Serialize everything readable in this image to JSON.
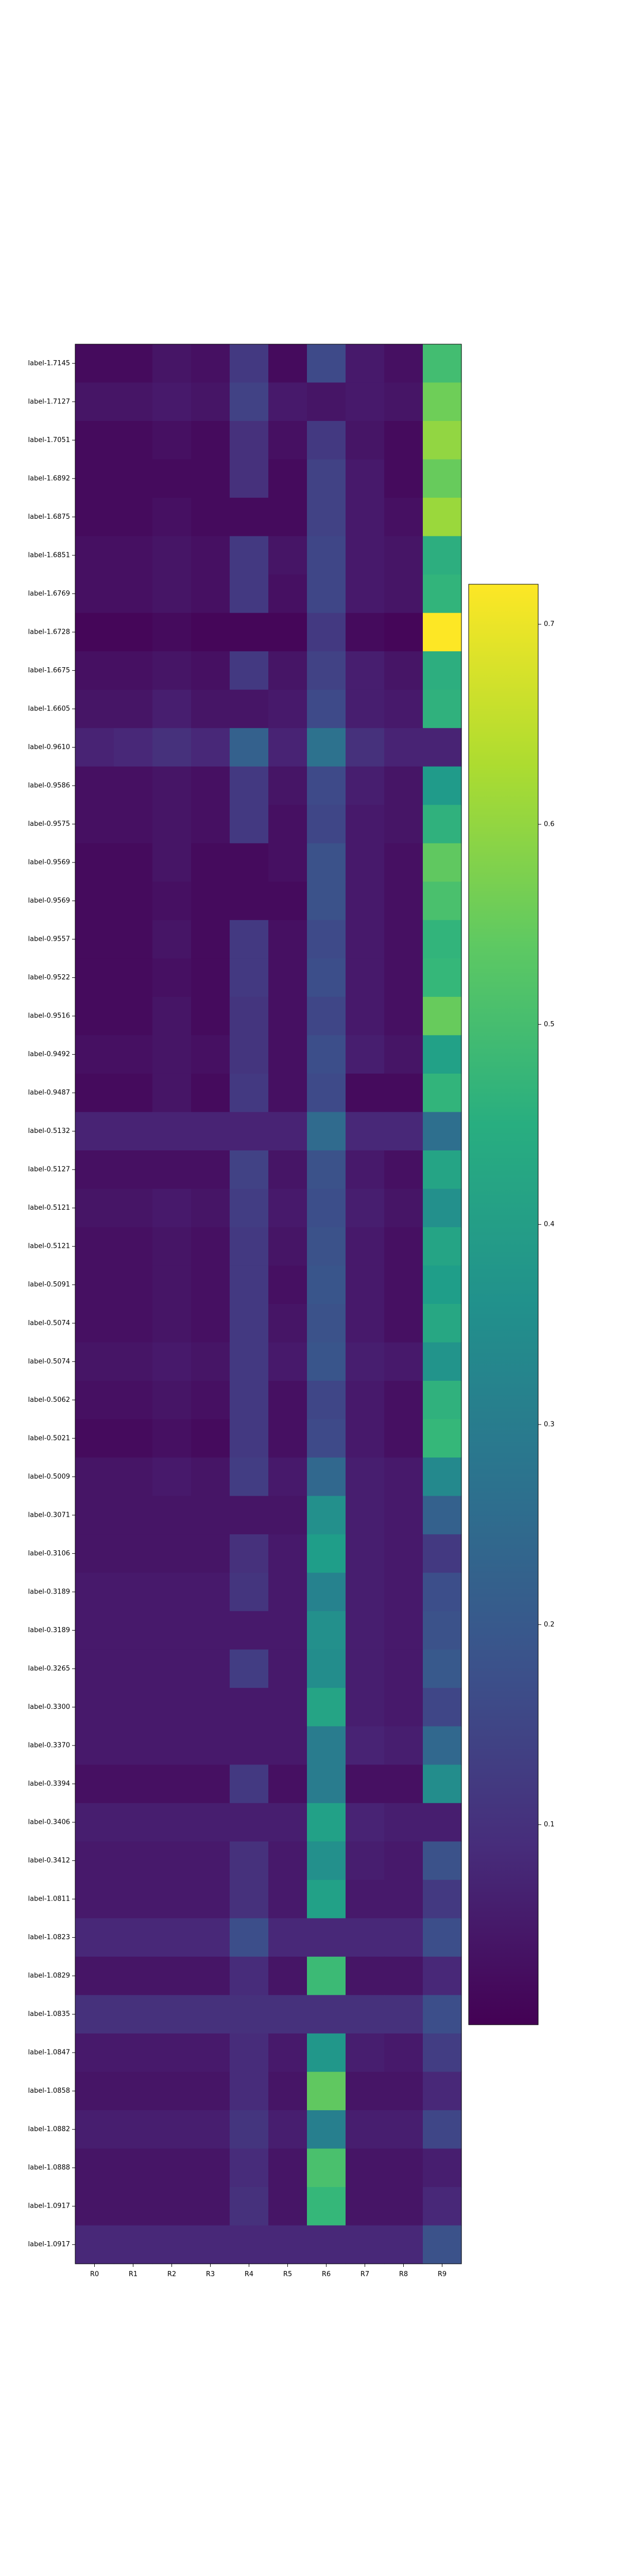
{
  "chart_data": {
    "type": "heatmap",
    "title": "",
    "xlabel": "",
    "ylabel": "",
    "columns": [
      "R0",
      "R1",
      "R2",
      "R3",
      "R4",
      "R5",
      "R6",
      "R7",
      "R8",
      "R9"
    ],
    "rows": [
      "label-1.7145",
      "label-1.7127",
      "label-1.7051",
      "label-1.6892",
      "label-1.6875",
      "label-1.6851",
      "label-1.6769",
      "label-1.6728",
      "label-1.6675",
      "label-1.6605",
      "label-0.9610",
      "label-0.9586",
      "label-0.9575",
      "label-0.9569",
      "label-0.9569",
      "label-0.9557",
      "label-0.9522",
      "label-0.9516",
      "label-0.9492",
      "label-0.9487",
      "label-0.5132",
      "label-0.5127",
      "label-0.5121",
      "label-0.5121",
      "label-0.5091",
      "label-0.5074",
      "label-0.5074",
      "label-0.5062",
      "label-0.5021",
      "label-0.5009",
      "label-0.3071",
      "label-0.3106",
      "label-0.3189",
      "label-0.3189",
      "label-0.3265",
      "label-0.3300",
      "label-0.3370",
      "label-0.3394",
      "label-0.3406",
      "label-0.3412",
      "label-1.0811",
      "label-1.0823",
      "label-1.0829",
      "label-1.0835",
      "label-1.0847",
      "label-1.0858",
      "label-1.0882",
      "label-1.0888",
      "label-1.0917",
      "label-1.0917"
    ],
    "values": [
      [
        0.02,
        0.02,
        0.04,
        0.03,
        0.12,
        0.02,
        0.16,
        0.05,
        0.03,
        0.5
      ],
      [
        0.04,
        0.04,
        0.05,
        0.04,
        0.14,
        0.05,
        0.04,
        0.05,
        0.04,
        0.56
      ],
      [
        0.02,
        0.02,
        0.03,
        0.02,
        0.1,
        0.03,
        0.12,
        0.04,
        0.02,
        0.6
      ],
      [
        0.02,
        0.02,
        0.02,
        0.02,
        0.1,
        0.02,
        0.14,
        0.05,
        0.02,
        0.55
      ],
      [
        0.02,
        0.02,
        0.03,
        0.02,
        0.02,
        0.02,
        0.14,
        0.05,
        0.03,
        0.61
      ],
      [
        0.03,
        0.03,
        0.04,
        0.03,
        0.12,
        0.04,
        0.15,
        0.05,
        0.04,
        0.45
      ],
      [
        0.03,
        0.03,
        0.04,
        0.03,
        0.12,
        0.03,
        0.15,
        0.05,
        0.04,
        0.47
      ],
      [
        0.01,
        0.01,
        0.02,
        0.01,
        0.01,
        0.01,
        0.12,
        0.02,
        0.01,
        0.72
      ],
      [
        0.03,
        0.03,
        0.04,
        0.03,
        0.12,
        0.04,
        0.14,
        0.06,
        0.04,
        0.45
      ],
      [
        0.04,
        0.04,
        0.06,
        0.04,
        0.04,
        0.05,
        0.16,
        0.06,
        0.05,
        0.46
      ],
      [
        0.07,
        0.08,
        0.1,
        0.08,
        0.22,
        0.07,
        0.27,
        0.1,
        0.07,
        0.07
      ],
      [
        0.03,
        0.03,
        0.04,
        0.03,
        0.12,
        0.04,
        0.16,
        0.06,
        0.04,
        0.39
      ],
      [
        0.03,
        0.03,
        0.04,
        0.03,
        0.12,
        0.03,
        0.15,
        0.05,
        0.04,
        0.46
      ],
      [
        0.02,
        0.02,
        0.04,
        0.02,
        0.02,
        0.03,
        0.18,
        0.05,
        0.03,
        0.54
      ],
      [
        0.02,
        0.02,
        0.03,
        0.02,
        0.02,
        0.02,
        0.18,
        0.05,
        0.03,
        0.51
      ],
      [
        0.02,
        0.02,
        0.04,
        0.02,
        0.12,
        0.03,
        0.16,
        0.05,
        0.03,
        0.47
      ],
      [
        0.02,
        0.02,
        0.03,
        0.02,
        0.12,
        0.03,
        0.17,
        0.05,
        0.03,
        0.48
      ],
      [
        0.02,
        0.02,
        0.04,
        0.02,
        0.11,
        0.03,
        0.15,
        0.05,
        0.03,
        0.55
      ],
      [
        0.03,
        0.03,
        0.04,
        0.03,
        0.11,
        0.03,
        0.17,
        0.06,
        0.04,
        0.41
      ],
      [
        0.02,
        0.02,
        0.04,
        0.02,
        0.12,
        0.03,
        0.16,
        0.02,
        0.02,
        0.47
      ],
      [
        0.07,
        0.07,
        0.07,
        0.07,
        0.07,
        0.07,
        0.25,
        0.08,
        0.08,
        0.26
      ],
      [
        0.03,
        0.03,
        0.03,
        0.03,
        0.14,
        0.04,
        0.18,
        0.05,
        0.03,
        0.42
      ],
      [
        0.04,
        0.04,
        0.05,
        0.04,
        0.13,
        0.05,
        0.17,
        0.06,
        0.04,
        0.36
      ],
      [
        0.03,
        0.03,
        0.04,
        0.03,
        0.12,
        0.04,
        0.18,
        0.05,
        0.03,
        0.42
      ],
      [
        0.03,
        0.03,
        0.04,
        0.03,
        0.12,
        0.03,
        0.19,
        0.05,
        0.03,
        0.4
      ],
      [
        0.03,
        0.03,
        0.04,
        0.03,
        0.12,
        0.04,
        0.18,
        0.05,
        0.03,
        0.43
      ],
      [
        0.04,
        0.04,
        0.05,
        0.04,
        0.12,
        0.05,
        0.19,
        0.06,
        0.05,
        0.37
      ],
      [
        0.03,
        0.03,
        0.04,
        0.03,
        0.12,
        0.03,
        0.15,
        0.05,
        0.03,
        0.46
      ],
      [
        0.02,
        0.02,
        0.03,
        0.02,
        0.12,
        0.03,
        0.16,
        0.05,
        0.03,
        0.48
      ],
      [
        0.04,
        0.04,
        0.05,
        0.04,
        0.13,
        0.05,
        0.24,
        0.06,
        0.05,
        0.34
      ],
      [
        0.04,
        0.04,
        0.04,
        0.04,
        0.04,
        0.04,
        0.36,
        0.06,
        0.05,
        0.22
      ],
      [
        0.04,
        0.04,
        0.04,
        0.04,
        0.1,
        0.05,
        0.4,
        0.06,
        0.05,
        0.12
      ],
      [
        0.05,
        0.05,
        0.05,
        0.05,
        0.11,
        0.05,
        0.32,
        0.06,
        0.05,
        0.17
      ],
      [
        0.05,
        0.05,
        0.05,
        0.05,
        0.05,
        0.05,
        0.36,
        0.06,
        0.05,
        0.18
      ],
      [
        0.05,
        0.05,
        0.05,
        0.05,
        0.13,
        0.05,
        0.35,
        0.06,
        0.05,
        0.2
      ],
      [
        0.05,
        0.05,
        0.05,
        0.05,
        0.05,
        0.05,
        0.42,
        0.06,
        0.05,
        0.15
      ],
      [
        0.05,
        0.05,
        0.05,
        0.05,
        0.05,
        0.05,
        0.3,
        0.07,
        0.06,
        0.24
      ],
      [
        0.03,
        0.03,
        0.03,
        0.03,
        0.12,
        0.03,
        0.3,
        0.03,
        0.03,
        0.35
      ],
      [
        0.06,
        0.06,
        0.06,
        0.06,
        0.06,
        0.06,
        0.41,
        0.07,
        0.06,
        0.06
      ],
      [
        0.05,
        0.05,
        0.05,
        0.05,
        0.1,
        0.05,
        0.36,
        0.06,
        0.05,
        0.18
      ],
      [
        0.05,
        0.05,
        0.05,
        0.05,
        0.1,
        0.05,
        0.41,
        0.05,
        0.05,
        0.12
      ],
      [
        0.08,
        0.08,
        0.08,
        0.08,
        0.17,
        0.08,
        0.08,
        0.08,
        0.08,
        0.17
      ],
      [
        0.04,
        0.04,
        0.04,
        0.04,
        0.09,
        0.04,
        0.49,
        0.04,
        0.04,
        0.08
      ],
      [
        0.1,
        0.1,
        0.1,
        0.1,
        0.1,
        0.1,
        0.1,
        0.1,
        0.1,
        0.17
      ],
      [
        0.05,
        0.05,
        0.05,
        0.05,
        0.09,
        0.05,
        0.38,
        0.06,
        0.05,
        0.13
      ],
      [
        0.04,
        0.04,
        0.04,
        0.04,
        0.09,
        0.04,
        0.54,
        0.04,
        0.04,
        0.08
      ],
      [
        0.06,
        0.06,
        0.06,
        0.06,
        0.11,
        0.06,
        0.31,
        0.06,
        0.06,
        0.15
      ],
      [
        0.04,
        0.04,
        0.04,
        0.04,
        0.09,
        0.04,
        0.51,
        0.04,
        0.04,
        0.06
      ],
      [
        0.04,
        0.04,
        0.04,
        0.04,
        0.1,
        0.04,
        0.48,
        0.04,
        0.04,
        0.08
      ],
      [
        0.08,
        0.08,
        0.08,
        0.08,
        0.08,
        0.08,
        0.08,
        0.08,
        0.08,
        0.18
      ]
    ],
    "colormap": "viridis",
    "colorbar": {
      "range": [
        0.0,
        0.72
      ],
      "ticks": [
        0.1,
        0.2,
        0.3,
        0.4,
        0.5,
        0.6,
        0.7
      ],
      "tick_labels": [
        "0.1",
        "0.2",
        "0.3",
        "0.4",
        "0.5",
        "0.6",
        "0.7"
      ],
      "placement": "right"
    },
    "grid": false
  }
}
